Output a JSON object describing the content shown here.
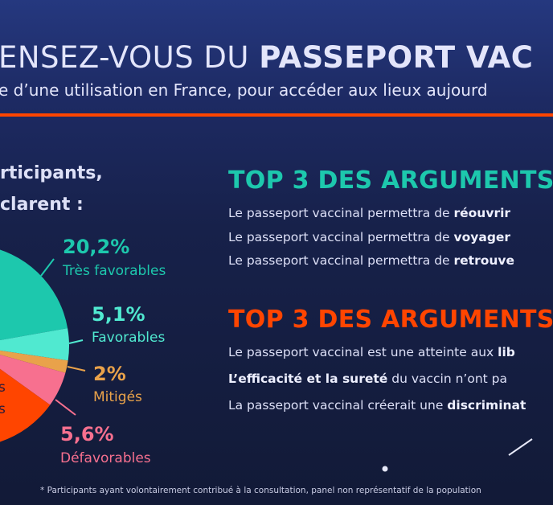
{
  "header": {
    "title_regular": "ENSEZ-VOUS DU ",
    "title_bold": "PASSEPORT VAC",
    "subtitle": "e d’une utilisation en France, pour accéder aux lieux aujourd"
  },
  "intro": {
    "line1": "rticipants,",
    "line2": "clarent :"
  },
  "chart_data": {
    "type": "pie",
    "slices": [
      {
        "label": "Très favorables",
        "value": 20.2,
        "display": "20,2%",
        "color": "#1dc8ad"
      },
      {
        "label": "Favorables",
        "value": 5.1,
        "display": "5,1%",
        "color": "#50e9d0"
      },
      {
        "label": "Mitigés",
        "value": 2,
        "display": "2%",
        "color": "#e9a24a"
      },
      {
        "label": "Défavorables",
        "value": 5.6,
        "display": "5,6%",
        "color": "#f7708f"
      }
    ],
    "partial_slice": {
      "color": "#ff4500",
      "label_fragments": [
        "s",
        "s"
      ]
    }
  },
  "pros": {
    "heading": "TOP 3 DES ARGUMENTS",
    "color": "#1dc8ad",
    "items": [
      {
        "pre": "Le passeport vaccinal permettra de ",
        "bold": "réouvrir",
        "post": ""
      },
      {
        "pre": "Le passeport vaccinal permettra de ",
        "bold": "voyager",
        "post": ""
      },
      {
        "pre": "Le passeport vaccinal permettra de ",
        "bold": "retrouve",
        "post": ""
      }
    ]
  },
  "cons": {
    "heading": "TOP 3 DES ARGUMENTS",
    "color": "#ff4500",
    "items": [
      {
        "pre": "Le passeport vaccinal est une atteinte aux ",
        "bold": "lib",
        "post": ""
      },
      {
        "pre": "",
        "bold": "L’efficacité et la sureté",
        "post": " du vaccin n’ont pa"
      },
      {
        "pre": "La passeport vaccinal créerait une ",
        "bold": "discriminat",
        "post": ""
      }
    ]
  },
  "footnote": "* Participants ayant volontairement contribué à la consultation, panel non représentatif de la population"
}
